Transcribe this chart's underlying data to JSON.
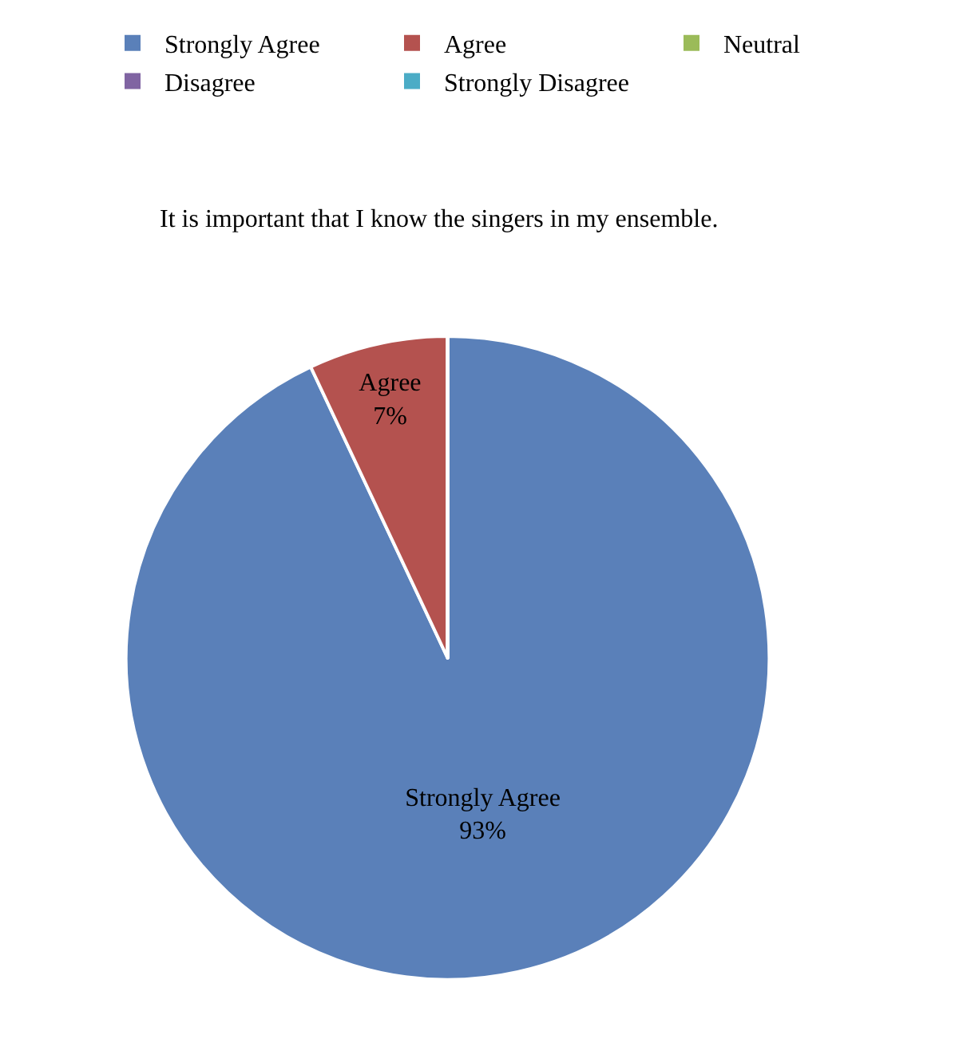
{
  "chart_data": {
    "type": "pie",
    "title": "It is important that I know the singers in my ensemble.",
    "categories": [
      "Strongly Agree",
      "Agree",
      "Neutral",
      "Disagree",
      "Strongly Disagree"
    ],
    "values": [
      93,
      7,
      0,
      0,
      0
    ],
    "colors": [
      "#5a80b9",
      "#b4524f",
      "#9bbb59",
      "#8064a2",
      "#4bacc6"
    ],
    "value_labels": [
      "93%",
      "7%",
      null,
      null,
      null
    ],
    "legend": "top"
  }
}
